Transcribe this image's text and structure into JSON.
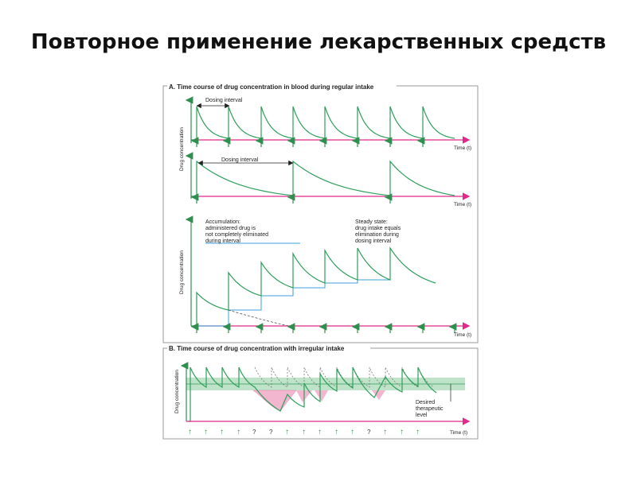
{
  "slide": {
    "title": "Повторное применение лекарственных средств"
  },
  "panel_a": {
    "header": "A. Time course of drug concentration in blood during regular intake",
    "ylabel": "Drug concentration",
    "time_label": "Time (t)",
    "dosing_interval_1": "Dosing interval",
    "dosing_interval_2": "Dosing interval",
    "accumulation_note": [
      "Accumulation:",
      "administered drug is",
      "not completely eliminated",
      "during interval"
    ],
    "steady_state_note": [
      "Steady state:",
      "drug intake equals",
      "elimination during",
      "dosing interval"
    ]
  },
  "panel_b": {
    "header": "B. Time course of drug concentration with irregular intake",
    "ylabel": "Drug concentration",
    "time_label": "Time (t)",
    "therapeutic_note": [
      "Desired",
      "therapeutic",
      "level"
    ],
    "intake_marks": [
      "↑",
      "↑",
      "↑",
      "↑",
      "?",
      "?",
      "↑",
      "↑",
      "↑",
      "↑",
      "↑",
      "?",
      "↑",
      "↑",
      "↑"
    ]
  },
  "colors": {
    "curve": "#2e9e5b",
    "axis": "#2f8f4e",
    "time_axis": "#e0298a",
    "accumulation": "#3aa0d8",
    "therapeutic_band": "#bfe3c8",
    "shortfall": "#f2b6cf",
    "frame": "#9a9a9a"
  }
}
